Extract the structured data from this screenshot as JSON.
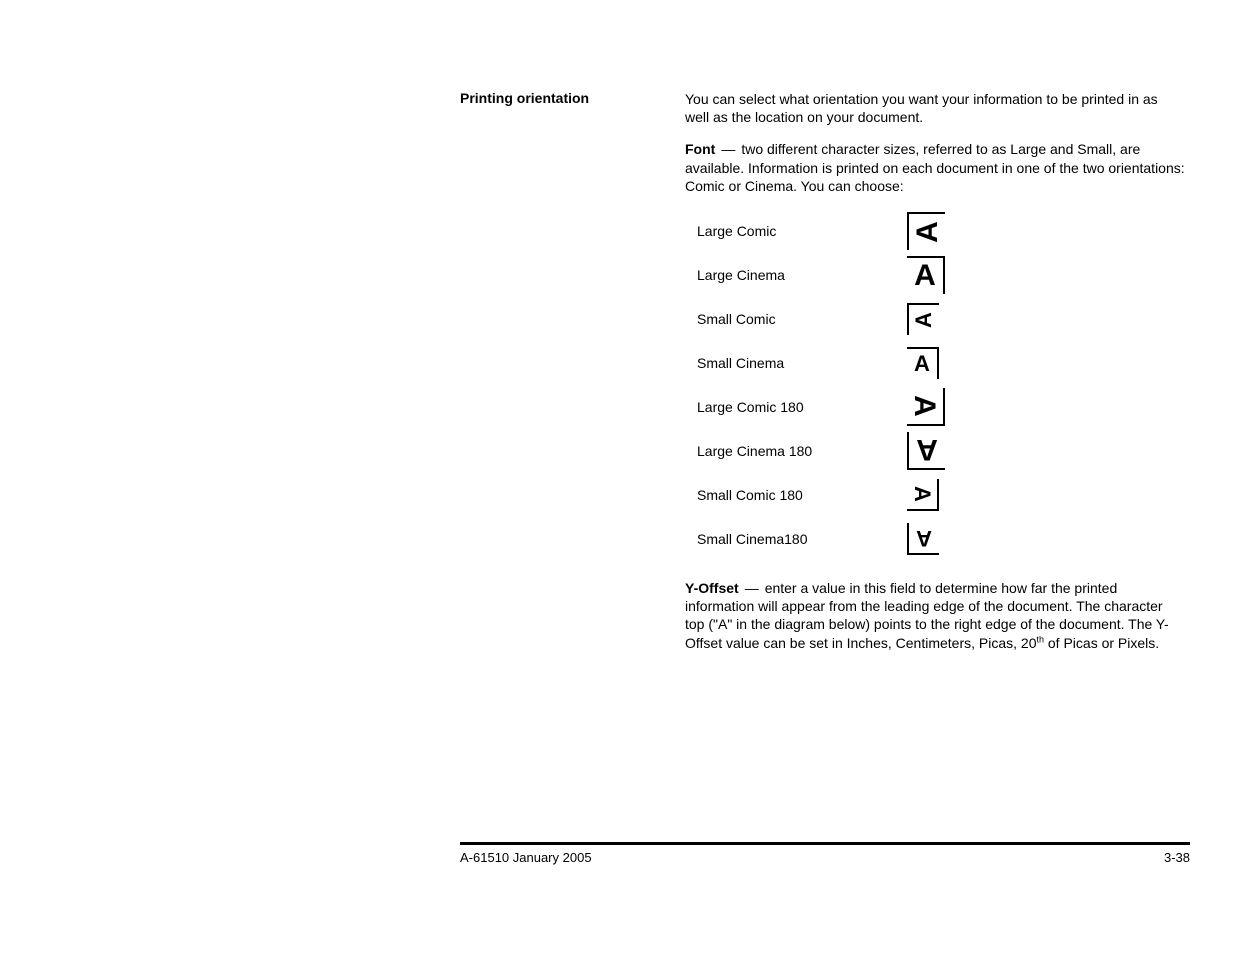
{
  "heading": "Printing orientation",
  "intro": "You can select what orientation you want your information to be printed in as well as the location on your document.",
  "font_label": "Font",
  "font_dash": "—",
  "font_text": "two different character sizes, referred to as Large and Small, are available. Information is printed on each document in one of the two orientations: Comic or Cinema. You can choose:",
  "items": [
    {
      "label": "Large Comic",
      "size": "large",
      "orient": "comic"
    },
    {
      "label": "Large Cinema",
      "size": "large",
      "orient": "cinema"
    },
    {
      "label": "Small Comic",
      "size": "small",
      "orient": "comic"
    },
    {
      "label": "Small Cinema",
      "size": "small",
      "orient": "cinema"
    },
    {
      "label": "Large Comic 180",
      "size": "large",
      "orient": "comic180"
    },
    {
      "label": "Large Cinema 180",
      "size": "large",
      "orient": "cinema180"
    },
    {
      "label": "Small Comic 180",
      "size": "small",
      "orient": "comic180"
    },
    {
      "label": "Small Cinema180",
      "size": "small",
      "orient": "cinema180"
    }
  ],
  "glyph_char": "A",
  "yoffset_label": "Y-Offset",
  "yoffset_dash": "—",
  "yoffset_text_1": "enter a value in this field to determine how far the printed information will appear from the leading edge of the document. The character top (\"A\" in the diagram below) points to the right edge of the document. The Y-Offset value can be set in Inches, Centimeters, Picas, 20",
  "yoffset_sup": "th",
  "yoffset_text_2": " of Picas or Pixels.",
  "footer_left": "A-61510 January 2005",
  "footer_right": "3-38"
}
